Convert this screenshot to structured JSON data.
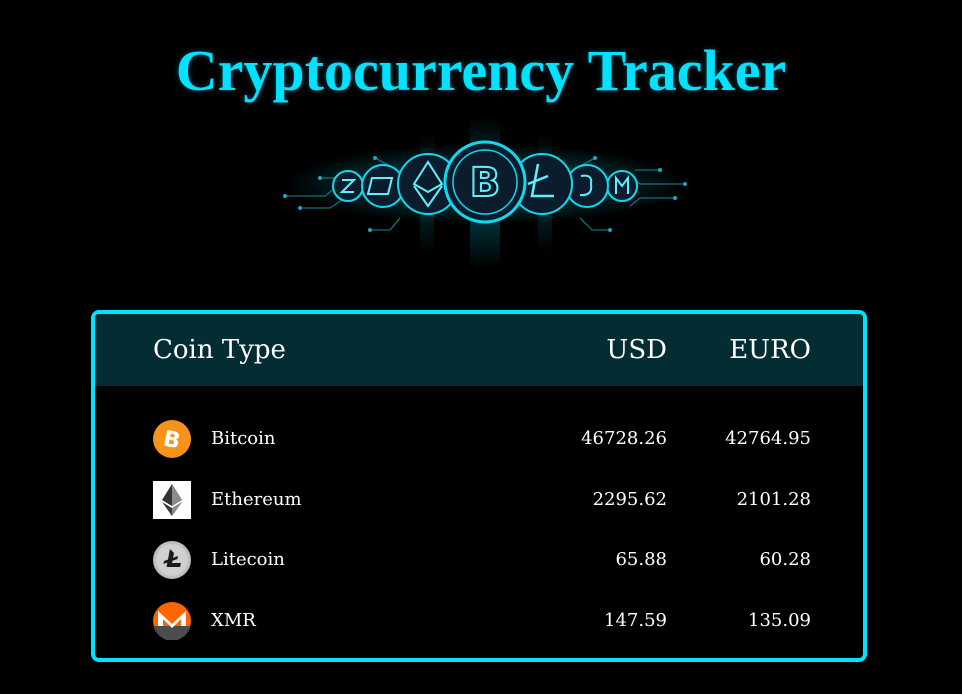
{
  "page": {
    "title": "Cryptocurrency Tracker",
    "accent_color": "#00e2ff",
    "background_color": "#000000"
  },
  "banner": {
    "icon_name": "crypto-coins-circuit-banner",
    "coins": [
      "Zcash",
      "Dash",
      "Ethereum",
      "Bitcoin",
      "Litecoin",
      "Ethereum-classic",
      "Monero"
    ]
  },
  "table": {
    "headers": {
      "coin": "Coin Type",
      "usd": "USD",
      "euro": "EURO"
    },
    "header_bg": "#042c33",
    "rows": [
      {
        "name": "Bitcoin",
        "icon": "bitcoin-icon",
        "usd": "46728.26",
        "euro": "42764.95"
      },
      {
        "name": "Ethereum",
        "icon": "ethereum-icon",
        "usd": "2295.62",
        "euro": "2101.28"
      },
      {
        "name": "Litecoin",
        "icon": "litecoin-icon",
        "usd": "65.88",
        "euro": "60.28"
      },
      {
        "name": "XMR",
        "icon": "monero-icon",
        "usd": "147.59",
        "euro": "135.09"
      }
    ]
  }
}
